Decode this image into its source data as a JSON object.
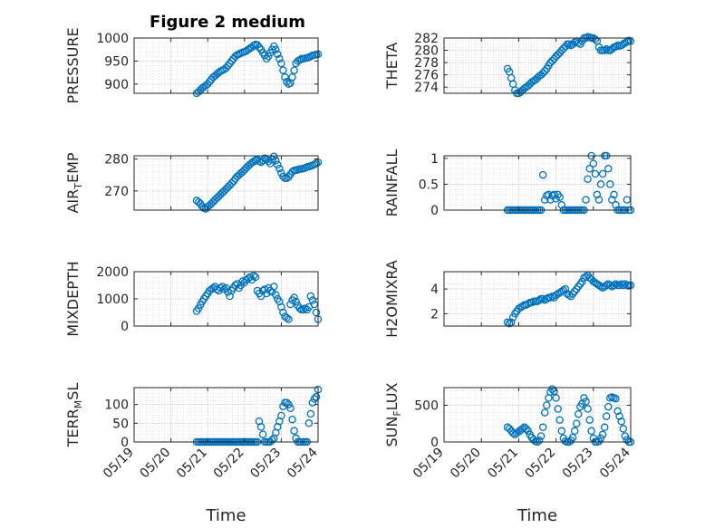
{
  "figure_title": "Figure 2 medium",
  "marker_color": "#0072BD",
  "x_ticks": [
    "05/19",
    "05/20",
    "05/21",
    "05/22",
    "05/23",
    "05/24"
  ],
  "chart_data": [
    {
      "type": "scatter",
      "ylabel": "PRESSURE",
      "ylim": [
        880,
        1000
      ],
      "yticks": [
        900,
        950,
        1000
      ],
      "grid": true,
      "x": [
        20.7,
        20.75,
        20.8,
        20.85,
        20.9,
        20.95,
        21.0,
        21.05,
        21.1,
        21.15,
        21.2,
        21.25,
        21.3,
        21.35,
        21.4,
        21.45,
        21.5,
        21.55,
        21.6,
        21.65,
        21.7,
        21.75,
        21.8,
        21.85,
        21.9,
        21.95,
        22.0,
        22.05,
        22.1,
        22.15,
        22.2,
        22.25,
        22.3,
        22.35,
        22.4,
        22.45,
        22.5,
        22.55,
        22.6,
        22.65,
        22.7,
        22.75,
        22.8,
        22.85,
        22.9,
        22.95,
        23.0,
        23.05,
        23.1,
        23.15,
        23.2,
        23.25,
        23.3,
        23.35,
        23.4,
        23.45,
        23.5,
        23.55,
        23.6,
        23.65,
        23.7,
        23.75,
        23.8,
        23.85,
        23.9,
        23.95,
        24.0
      ],
      "y": [
        880,
        883,
        887,
        891,
        894,
        897,
        900,
        905,
        910,
        915,
        918,
        922,
        925,
        928,
        930,
        932,
        935,
        940,
        945,
        950,
        955,
        960,
        963,
        965,
        967,
        969,
        970,
        972,
        975,
        978,
        980,
        984,
        986,
        985,
        980,
        975,
        968,
        962,
        955,
        960,
        968,
        975,
        982,
        975,
        965,
        955,
        945,
        930,
        915,
        905,
        900,
        902,
        915,
        930,
        945,
        950,
        952,
        955,
        955,
        956,
        957,
        958,
        960,
        962,
        963,
        964,
        965
      ]
    },
    {
      "type": "scatter",
      "ylabel": "THETA",
      "ylim": [
        273,
        282
      ],
      "yticks": [
        274,
        276,
        278,
        280,
        282
      ],
      "grid": true,
      "x": [
        20.7,
        20.75,
        20.8,
        20.85,
        20.9,
        20.95,
        21.0,
        21.05,
        21.1,
        21.15,
        21.2,
        21.25,
        21.3,
        21.35,
        21.4,
        21.45,
        21.5,
        21.55,
        21.6,
        21.65,
        21.7,
        21.75,
        21.8,
        21.85,
        21.9,
        21.95,
        22.0,
        22.05,
        22.1,
        22.15,
        22.2,
        22.25,
        22.3,
        22.35,
        22.4,
        22.45,
        22.5,
        22.55,
        22.6,
        22.65,
        22.7,
        22.75,
        22.8,
        22.85,
        22.9,
        22.95,
        23.0,
        23.05,
        23.1,
        23.15,
        23.2,
        23.25,
        23.3,
        23.35,
        23.4,
        23.45,
        23.5,
        23.55,
        23.6,
        23.65,
        23.7,
        23.75,
        23.8,
        23.85,
        23.9,
        23.95,
        24.0
      ],
      "y": [
        277,
        276.5,
        275.5,
        274.5,
        273.5,
        273.0,
        273.0,
        273.2,
        273.5,
        273.8,
        274.0,
        274.2,
        274.5,
        274.8,
        275.0,
        275.2,
        275.5,
        275.8,
        276.0,
        276.3,
        276.6,
        277.0,
        277.5,
        278.0,
        278.3,
        278.6,
        279.0,
        279.3,
        279.6,
        280.0,
        280.3,
        280.6,
        281.0,
        281.0,
        280.8,
        281.0,
        281.3,
        281.5,
        281.2,
        281.0,
        281.5,
        282.0,
        282.0,
        282.2,
        282.1,
        282.0,
        282.0,
        281.8,
        281.5,
        280.5,
        280.0,
        280.0,
        280.0,
        280.2,
        280.0,
        280.0,
        280.2,
        280.5,
        280.6,
        280.8,
        280.7,
        280.8,
        281.0,
        281.2,
        281.4,
        281.6,
        281.5
      ]
    },
    {
      "type": "scatter",
      "ylabel": "AIR_TEMP",
      "ylim": [
        264,
        281
      ],
      "yticks": [
        270,
        280
      ],
      "grid": true,
      "x": [
        20.7,
        20.75,
        20.8,
        20.85,
        20.9,
        20.95,
        21.0,
        21.05,
        21.1,
        21.15,
        21.2,
        21.25,
        21.3,
        21.35,
        21.4,
        21.45,
        21.5,
        21.55,
        21.6,
        21.65,
        21.7,
        21.75,
        21.8,
        21.85,
        21.9,
        21.95,
        22.0,
        22.05,
        22.1,
        22.15,
        22.2,
        22.25,
        22.3,
        22.35,
        22.4,
        22.45,
        22.5,
        22.55,
        22.6,
        22.65,
        22.7,
        22.75,
        22.8,
        22.85,
        22.9,
        22.95,
        23.0,
        23.05,
        23.1,
        23.15,
        23.2,
        23.25,
        23.3,
        23.35,
        23.4,
        23.45,
        23.5,
        23.55,
        23.6,
        23.65,
        23.7,
        23.75,
        23.8,
        23.85,
        23.9,
        23.95,
        24.0
      ],
      "y": [
        267,
        266.5,
        266,
        265.2,
        264.6,
        264.4,
        265,
        265.5,
        266,
        266.6,
        267.2,
        267.8,
        268.3,
        268.9,
        269.5,
        270,
        270.6,
        271.2,
        271.8,
        272.4,
        273,
        273.8,
        274.5,
        275,
        275.5,
        276,
        276.6,
        277.2,
        277.8,
        278.3,
        278.8,
        279.2,
        279.6,
        279.8,
        279.3,
        279,
        279.5,
        280.2,
        279.8,
        279.3,
        278.6,
        279.8,
        280.8,
        279.5,
        278.2,
        277,
        275.6,
        274.5,
        274,
        274,
        274.4,
        275.2,
        276,
        276.4,
        276.5,
        276.6,
        276.8,
        276.9,
        277,
        277.2,
        277.5,
        277.6,
        277.8,
        278,
        278.3,
        278.6,
        278.9
      ]
    },
    {
      "type": "scatter",
      "ylabel": "RAINFALL",
      "ylim": [
        0,
        1.05
      ],
      "yticks": [
        0,
        0.5,
        1
      ],
      "grid": true,
      "x": [
        20.7,
        20.75,
        20.8,
        20.85,
        20.9,
        20.95,
        21.0,
        21.05,
        21.1,
        21.15,
        21.2,
        21.25,
        21.3,
        21.35,
        21.4,
        21.45,
        21.5,
        21.55,
        21.6,
        21.65,
        21.7,
        21.75,
        21.8,
        21.85,
        21.9,
        21.95,
        22.0,
        22.05,
        22.1,
        22.15,
        22.2,
        22.25,
        22.3,
        22.35,
        22.4,
        22.45,
        22.5,
        22.55,
        22.6,
        22.65,
        22.7,
        22.75,
        22.8,
        22.85,
        22.9,
        22.95,
        23.0,
        23.05,
        23.1,
        23.15,
        23.2,
        23.25,
        23.3,
        23.35,
        23.4,
        23.45,
        23.5,
        23.55,
        23.6,
        23.65,
        23.7,
        23.75,
        23.8,
        23.85,
        23.9,
        23.95,
        24.0
      ],
      "y": [
        0,
        0,
        0,
        0,
        0,
        0,
        0,
        0,
        0,
        0,
        0,
        0,
        0,
        0,
        0,
        0,
        0,
        0,
        0,
        0.68,
        0.2,
        0.28,
        0.3,
        0.2,
        0.28,
        0.3,
        0.22,
        0.3,
        0.25,
        0.1,
        0,
        0,
        0,
        0,
        0,
        0,
        0,
        0,
        0,
        0,
        0,
        0,
        0.2,
        0.6,
        0.8,
        1.05,
        0.9,
        0.7,
        0.3,
        0.2,
        0.5,
        0.7,
        1.05,
        1.05,
        0.8,
        0.5,
        0.2,
        0.3,
        0.1,
        0,
        0,
        0,
        0,
        0,
        0.2,
        0,
        0
      ]
    },
    {
      "type": "scatter",
      "ylabel": "MIXDEPTH",
      "ylim": [
        0,
        2000
      ],
      "yticks": [
        0,
        1000,
        2000
      ],
      "grid": true,
      "x": [
        20.7,
        20.75,
        20.8,
        20.85,
        20.9,
        20.95,
        21.0,
        21.05,
        21.1,
        21.15,
        21.2,
        21.25,
        21.3,
        21.35,
        21.4,
        21.45,
        21.5,
        21.55,
        21.6,
        21.65,
        21.7,
        21.75,
        21.8,
        21.85,
        21.9,
        21.95,
        22.0,
        22.05,
        22.1,
        22.15,
        22.2,
        22.25,
        22.3,
        22.35,
        22.4,
        22.45,
        22.5,
        22.55,
        22.6,
        22.65,
        22.7,
        22.75,
        22.8,
        22.85,
        22.9,
        22.95,
        23.0,
        23.05,
        23.1,
        23.15,
        23.2,
        23.25,
        23.3,
        23.35,
        23.4,
        23.45,
        23.5,
        23.55,
        23.6,
        23.65,
        23.7,
        23.75,
        23.8,
        23.85,
        23.9,
        23.95,
        24.0
      ],
      "y": [
        550,
        650,
        780,
        900,
        1000,
        1100,
        1200,
        1300,
        1350,
        1400,
        1450,
        1350,
        1300,
        1400,
        1450,
        1350,
        1400,
        1250,
        1100,
        1300,
        1400,
        1500,
        1550,
        1400,
        1500,
        1650,
        1600,
        1700,
        1750,
        1800,
        1700,
        1850,
        1800,
        1300,
        1200,
        1100,
        1300,
        1350,
        1200,
        1400,
        1300,
        1250,
        1450,
        1150,
        1000,
        900,
        700,
        500,
        350,
        300,
        250,
        800,
        950,
        1050,
        900,
        750,
        650,
        600,
        600,
        650,
        600,
        700,
        1100,
        950,
        800,
        500,
        250
      ]
    },
    {
      "type": "scatter",
      "ylabel": "H2OMIXRA",
      "ylim": [
        1,
        5.4
      ],
      "yticks": [
        2,
        4
      ],
      "grid": true,
      "x": [
        20.7,
        20.75,
        20.8,
        20.85,
        20.9,
        20.95,
        21.0,
        21.05,
        21.1,
        21.15,
        21.2,
        21.25,
        21.3,
        21.35,
        21.4,
        21.45,
        21.5,
        21.55,
        21.6,
        21.65,
        21.7,
        21.75,
        21.8,
        21.85,
        21.9,
        21.95,
        22.0,
        22.05,
        22.1,
        22.15,
        22.2,
        22.25,
        22.3,
        22.35,
        22.4,
        22.45,
        22.5,
        22.55,
        22.6,
        22.65,
        22.7,
        22.75,
        22.8,
        22.85,
        22.9,
        22.95,
        23.0,
        23.05,
        23.1,
        23.15,
        23.2,
        23.25,
        23.3,
        23.35,
        23.4,
        23.45,
        23.5,
        23.55,
        23.6,
        23.65,
        23.7,
        23.75,
        23.8,
        23.85,
        23.9,
        23.95,
        24.0
      ],
      "y": [
        1.3,
        1.2,
        1.3,
        1.7,
        2.0,
        2.2,
        2.4,
        2.5,
        2.6,
        2.7,
        2.7,
        2.8,
        2.9,
        2.9,
        3.0,
        3.0,
        3.0,
        3.1,
        3.2,
        3.2,
        3.1,
        3.2,
        3.3,
        3.3,
        3.4,
        3.3,
        3.5,
        3.6,
        3.7,
        3.8,
        3.9,
        4.0,
        3.6,
        3.5,
        3.4,
        3.6,
        3.8,
        4.0,
        4.2,
        4.4,
        4.6,
        4.9,
        5.0,
        5.1,
        4.9,
        4.8,
        4.6,
        4.5,
        4.4,
        4.3,
        4.2,
        4.1,
        4.2,
        4.3,
        4.4,
        4.3,
        4.2,
        4.3,
        4.4,
        4.3,
        4.3,
        4.4,
        4.3,
        4.4,
        4.3,
        4.3,
        4.3
      ]
    },
    {
      "type": "scatter",
      "ylabel": "TERR_MSL",
      "ylim": [
        0,
        145
      ],
      "yticks": [
        0,
        50,
        100
      ],
      "grid": true,
      "x": [
        20.7,
        20.75,
        20.8,
        20.85,
        20.9,
        20.95,
        21.0,
        21.05,
        21.1,
        21.15,
        21.2,
        21.25,
        21.3,
        21.35,
        21.4,
        21.45,
        21.5,
        21.55,
        21.6,
        21.65,
        21.7,
        21.75,
        21.8,
        21.85,
        21.9,
        21.95,
        22.0,
        22.05,
        22.1,
        22.15,
        22.2,
        22.25,
        22.3,
        22.35,
        22.4,
        22.45,
        22.5,
        22.55,
        22.6,
        22.65,
        22.7,
        22.75,
        22.8,
        22.85,
        22.9,
        22.95,
        23.0,
        23.05,
        23.1,
        23.15,
        23.2,
        23.25,
        23.3,
        23.35,
        23.4,
        23.45,
        23.5,
        23.55,
        23.6,
        23.65,
        23.7,
        23.75,
        23.8,
        23.85,
        23.9,
        23.95,
        24.0
      ],
      "y": [
        0,
        0,
        0,
        0,
        0,
        0,
        0,
        0,
        0,
        0,
        0,
        0,
        0,
        0,
        0,
        0,
        0,
        0,
        0,
        0,
        0,
        0,
        0,
        0,
        0,
        0,
        0,
        0,
        0,
        0,
        0,
        0,
        0,
        0,
        55,
        40,
        20,
        0,
        0,
        0,
        0,
        5,
        10,
        25,
        40,
        55,
        70,
        95,
        105,
        105,
        100,
        90,
        60,
        30,
        10,
        0,
        0,
        0,
        0,
        0,
        0,
        50,
        75,
        105,
        115,
        120,
        140
      ]
    },
    {
      "type": "scatter",
      "ylabel": "SUN_FLUX",
      "ylim": [
        0,
        740
      ],
      "yticks": [
        0,
        500
      ],
      "grid": true,
      "x": [
        20.7,
        20.75,
        20.8,
        20.85,
        20.9,
        20.95,
        21.0,
        21.05,
        21.1,
        21.15,
        21.2,
        21.25,
        21.3,
        21.35,
        21.4,
        21.45,
        21.5,
        21.55,
        21.6,
        21.65,
        21.7,
        21.75,
        21.8,
        21.85,
        21.9,
        21.95,
        22.0,
        22.05,
        22.1,
        22.15,
        22.2,
        22.25,
        22.3,
        22.35,
        22.4,
        22.45,
        22.5,
        22.55,
        22.6,
        22.65,
        22.7,
        22.75,
        22.8,
        22.85,
        22.9,
        22.95,
        23.0,
        23.05,
        23.1,
        23.15,
        23.2,
        23.25,
        23.3,
        23.35,
        23.4,
        23.45,
        23.5,
        23.55,
        23.6,
        23.65,
        23.7,
        23.75,
        23.8,
        23.85,
        23.9,
        23.95,
        24.0
      ],
      "y": [
        200,
        180,
        150,
        120,
        100,
        120,
        140,
        160,
        180,
        200,
        180,
        150,
        100,
        60,
        30,
        10,
        0,
        20,
        80,
        200,
        400,
        500,
        600,
        680,
        720,
        690,
        600,
        450,
        300,
        150,
        50,
        10,
        0,
        0,
        20,
        60,
        150,
        250,
        380,
        480,
        520,
        600,
        550,
        450,
        300,
        150,
        50,
        0,
        0,
        10,
        50,
        100,
        200,
        350,
        480,
        600,
        610,
        600,
        590,
        420,
        350,
        280,
        180,
        80,
        30,
        0,
        0
      ]
    }
  ],
  "x_axis_label": "Time"
}
